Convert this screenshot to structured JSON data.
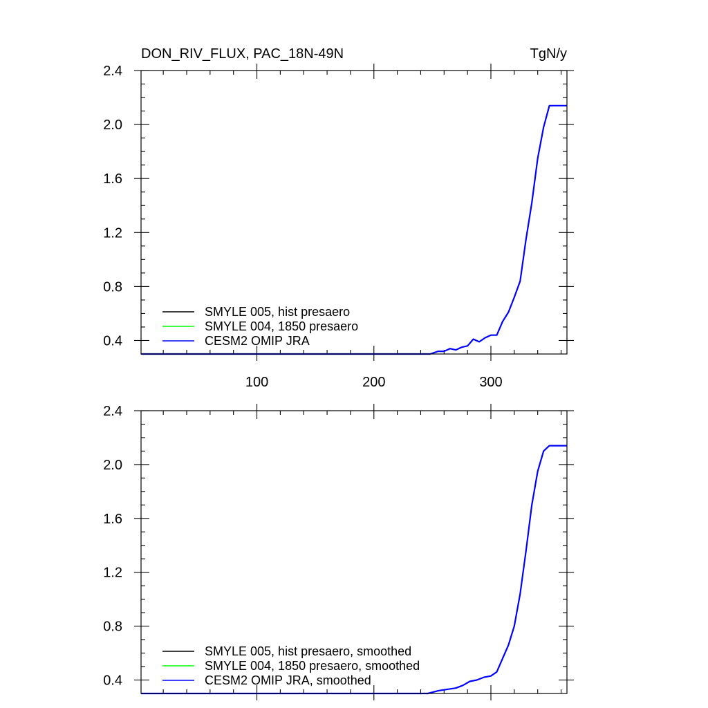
{
  "chart_data": [
    {
      "type": "line",
      "title": "DON_RIV_FLUX, PAC_18N-49N",
      "units": "TgN/y",
      "xlabel": "",
      "ylabel": "",
      "xlim": [
        1,
        365
      ],
      "ylim": [
        0.3,
        2.4
      ],
      "x_ticks": [
        100,
        200,
        300
      ],
      "x_tick_labels": [
        "100",
        "200",
        "300"
      ],
      "y_ticks": [
        0.4,
        0.8,
        1.2,
        1.6,
        2.0,
        2.4
      ],
      "y_tick_labels": [
        "0.4",
        "0.8",
        "1.2",
        "1.6",
        "2.0",
        "2.4"
      ],
      "grid": false,
      "legend_position": "bottom-left",
      "series": [
        {
          "name": "SMYLE 005, hist presaero",
          "color": "#000000",
          "x": [],
          "y": []
        },
        {
          "name": "SMYLE 004, 1850 presaero",
          "color": "#00ff00",
          "x": [],
          "y": []
        },
        {
          "name": "CESM2 OMIP JRA",
          "color": "#0000ff",
          "x": [
            1,
            248,
            255,
            260,
            265,
            270,
            275,
            280,
            285,
            290,
            295,
            300,
            305,
            310,
            315,
            320,
            325,
            330,
            335,
            340,
            345,
            350,
            365
          ],
          "y": [
            0.3,
            0.3,
            0.32,
            0.32,
            0.34,
            0.33,
            0.35,
            0.36,
            0.41,
            0.39,
            0.42,
            0.44,
            0.44,
            0.54,
            0.61,
            0.72,
            0.84,
            1.15,
            1.42,
            1.75,
            1.98,
            2.14,
            2.14
          ]
        }
      ]
    },
    {
      "type": "line",
      "xlabel": "",
      "ylabel": "",
      "xlim": [
        1,
        365
      ],
      "ylim": [
        0.3,
        2.4
      ],
      "x_ticks": [
        100,
        200,
        300
      ],
      "y_ticks": [
        0.4,
        0.8,
        1.2,
        1.6,
        2.0,
        2.4
      ],
      "y_tick_labels": [
        "0.4",
        "0.8",
        "1.2",
        "1.6",
        "2.0",
        "2.4"
      ],
      "grid": false,
      "legend_position": "bottom-left",
      "series": [
        {
          "name": "SMYLE 005, hist presaero, smoothed",
          "color": "#000000",
          "x": [],
          "y": []
        },
        {
          "name": "SMYLE 004, 1850 presaero, smoothed",
          "color": "#00ff00",
          "x": [],
          "y": []
        },
        {
          "name": "CESM2 OMIP JRA, smoothed",
          "color": "#0000ff",
          "x": [
            1,
            246,
            255,
            262,
            270,
            276,
            282,
            288,
            294,
            300,
            305,
            310,
            315,
            320,
            325,
            330,
            335,
            340,
            345,
            350,
            355,
            365
          ],
          "y": [
            0.3,
            0.3,
            0.32,
            0.33,
            0.34,
            0.36,
            0.39,
            0.4,
            0.42,
            0.43,
            0.46,
            0.56,
            0.66,
            0.8,
            1.04,
            1.36,
            1.7,
            1.95,
            2.1,
            2.14,
            2.14,
            2.14
          ]
        }
      ]
    }
  ]
}
